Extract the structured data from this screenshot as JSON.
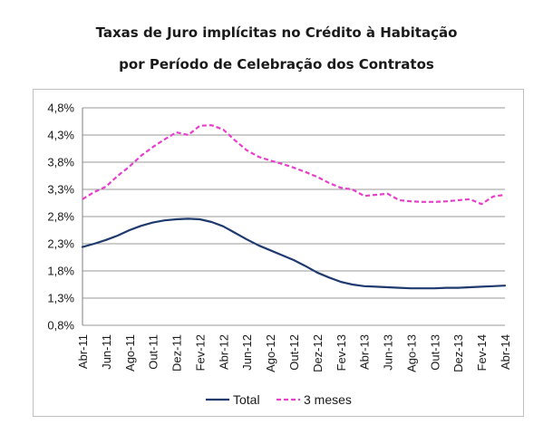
{
  "chart_data": {
    "type": "line",
    "title": "Taxas de Juro implícitas no Crédito à Habitação",
    "subtitle": "por Período de Celebração dos Contratos",
    "x": [
      "Abr-11",
      "Mai-11",
      "Jun-11",
      "Jul-11",
      "Ago-11",
      "Set-11",
      "Out-11",
      "Nov-11",
      "Dez-11",
      "Jan-12",
      "Fev-12",
      "Mar-12",
      "Abr-12",
      "Mai-12",
      "Jun-12",
      "Jul-12",
      "Ago-12",
      "Set-12",
      "Out-12",
      "Nov-12",
      "Dez-12",
      "Jan-13",
      "Fev-13",
      "Mar-13",
      "Abr-13",
      "Mai-13",
      "Jun-13",
      "Jul-13",
      "Ago-13",
      "Set-13",
      "Out-13",
      "Nov-13",
      "Dez-13",
      "Jan-14",
      "Fev-14",
      "Mar-14",
      "Abr-14"
    ],
    "x_tick_labels": [
      "Abr-11",
      "Jun-11",
      "Ago-11",
      "Out-11",
      "Dez-11",
      "Fev-12",
      "Abr-12",
      "Jun-12",
      "Ago-12",
      "Out-12",
      "Dez-12",
      "Fev-13",
      "Abr-13",
      "Jun-13",
      "Ago-13",
      "Out-13",
      "Dez-13",
      "Fev-14",
      "Abr-14"
    ],
    "y_ticks": [
      0.8,
      1.3,
      1.8,
      2.3,
      2.8,
      3.3,
      3.8,
      4.3,
      4.8
    ],
    "y_tick_labels": [
      "0,8%",
      "1,3%",
      "1,8%",
      "2,3%",
      "2,8%",
      "3,3%",
      "3,8%",
      "4,3%",
      "4,8%"
    ],
    "ylim": [
      0.8,
      4.8
    ],
    "grid": true,
    "legend_position": "bottom",
    "series": [
      {
        "name": "Total",
        "color": "#1f3a6e",
        "style": "solid",
        "values": [
          2.24,
          2.3,
          2.37,
          2.45,
          2.55,
          2.63,
          2.69,
          2.73,
          2.75,
          2.76,
          2.75,
          2.7,
          2.62,
          2.5,
          2.38,
          2.27,
          2.18,
          2.09,
          2.0,
          1.89,
          1.77,
          1.68,
          1.6,
          1.55,
          1.52,
          1.51,
          1.5,
          1.49,
          1.48,
          1.48,
          1.48,
          1.49,
          1.49,
          1.5,
          1.51,
          1.52,
          1.53
        ]
      },
      {
        "name": "3 meses",
        "color": "#e83ecb",
        "style": "dashed",
        "values": [
          3.12,
          3.25,
          3.35,
          3.55,
          3.72,
          3.92,
          4.08,
          4.22,
          4.35,
          4.3,
          4.47,
          4.48,
          4.4,
          4.2,
          4.02,
          3.9,
          3.83,
          3.77,
          3.7,
          3.62,
          3.53,
          3.42,
          3.33,
          3.3,
          3.18,
          3.2,
          3.22,
          3.1,
          3.08,
          3.07,
          3.07,
          3.08,
          3.1,
          3.12,
          3.03,
          3.17,
          3.2
        ]
      }
    ]
  }
}
